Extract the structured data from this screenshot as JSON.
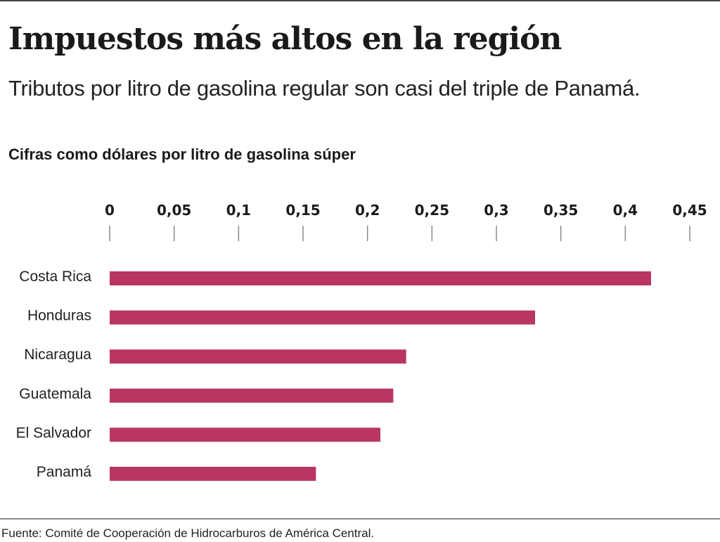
{
  "header": {
    "title": "Impuestos más altos en la región",
    "subtitle": "Tributos por litro de gasolina regular son casi del triple de Panamá."
  },
  "footer": {
    "source": "Fuente: Comité de Cooperación de Hidrocarburos de América Central."
  },
  "colors": {
    "bar": "#b8365f",
    "tick": "#888888"
  },
  "chart_data": {
    "type": "bar",
    "orientation": "horizontal",
    "title": "Cifras como dólares por litro de gasolina súper",
    "xlabel": "",
    "ylabel": "",
    "categories": [
      "Costa Rica",
      "Honduras",
      "Nicaragua",
      "Guatemala",
      "El Salvador",
      "Panamá"
    ],
    "values": [
      0.42,
      0.33,
      0.23,
      0.22,
      0.21,
      0.16
    ],
    "xlim": [
      0,
      0.45
    ],
    "x_ticks": [
      0,
      0.05,
      0.1,
      0.15,
      0.2,
      0.25,
      0.3,
      0.35,
      0.4,
      0.45
    ],
    "x_tick_labels": [
      "0",
      "0,05",
      "0,1",
      "0,15",
      "0,2",
      "0,25",
      "0,3",
      "0,35",
      "0,4",
      "0,45"
    ],
    "axis_position": "top",
    "grid": false,
    "legend": "none"
  }
}
